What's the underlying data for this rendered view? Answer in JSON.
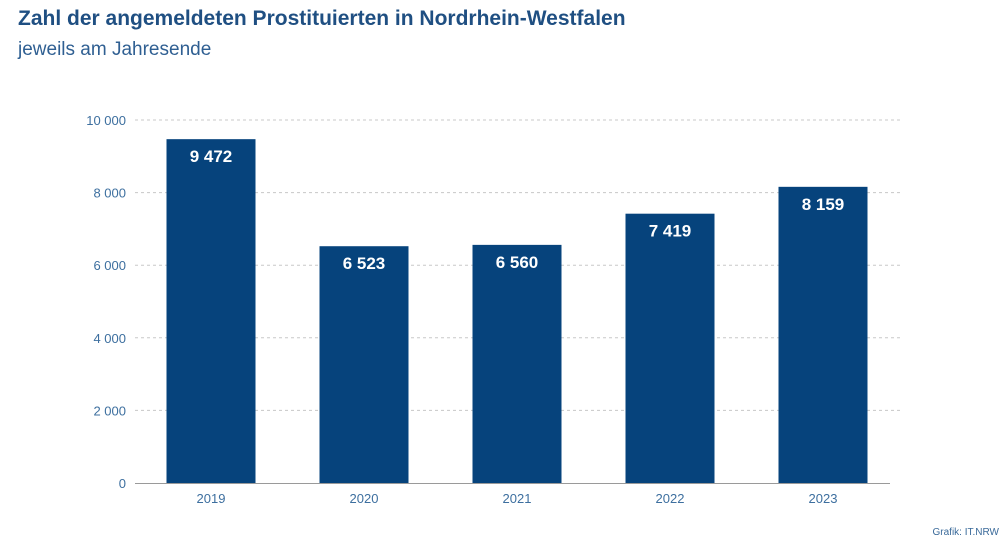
{
  "title": "Zahl der angemeldeten Prostituierten in Nordrhein-Westfalen",
  "subtitle": "jeweils am Jahresende",
  "source": "Grafik: IT.NRW",
  "colors": {
    "bar": "#06437c",
    "grid": "#c8c8c8",
    "axis": "#9a9a9a",
    "title": "#1f4f82"
  },
  "chart_data": {
    "type": "bar",
    "title": "Zahl der angemeldeten Prostituierten in Nordrhein-Westfalen",
    "subtitle": "jeweils am Jahresende",
    "xlabel": "",
    "ylabel": "",
    "categories": [
      "2019",
      "2020",
      "2021",
      "2022",
      "2023"
    ],
    "values": [
      9472,
      6523,
      6560,
      7419,
      8159
    ],
    "value_labels": [
      "9 472",
      "6 523",
      "6 560",
      "7 419",
      "8 159"
    ],
    "ylim": [
      0,
      10000
    ],
    "yticks": [
      0,
      2000,
      4000,
      6000,
      8000,
      10000
    ],
    "ytick_labels": [
      "0",
      "2 000",
      "4 000",
      "6 000",
      "8 000",
      "10 000"
    ],
    "grid": true,
    "legend": "none"
  }
}
